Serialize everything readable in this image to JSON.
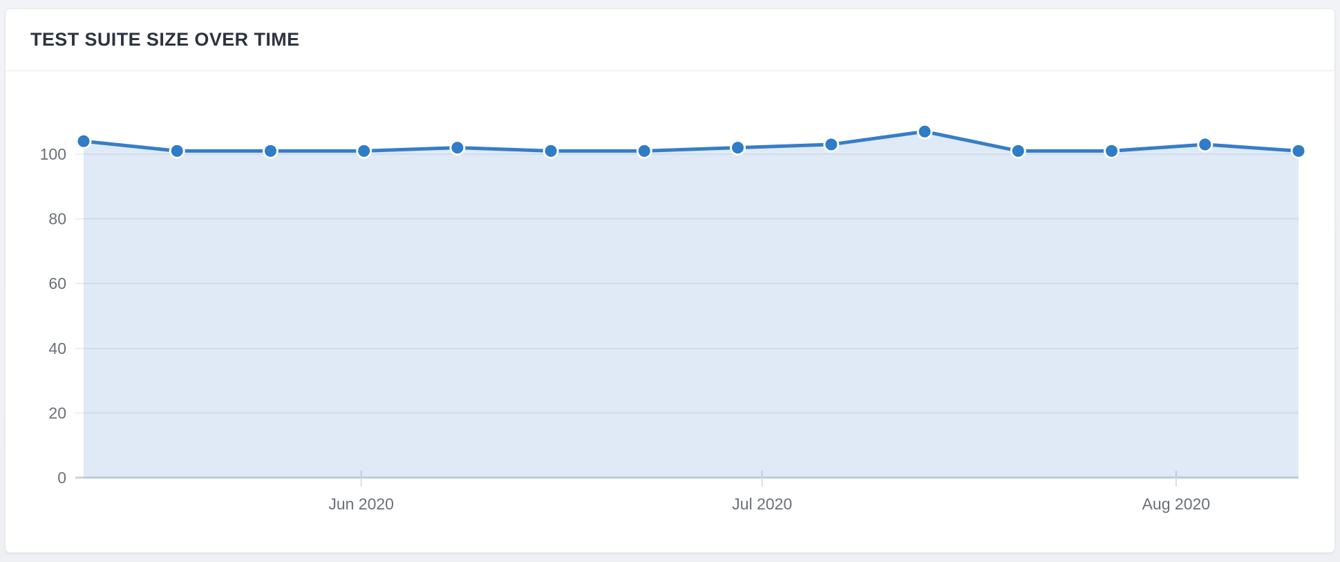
{
  "page": {
    "background_color": "#f1f2f6"
  },
  "card": {
    "title": "TEST SUITE SIZE OVER TIME"
  },
  "chart_data": {
    "type": "area",
    "title": "TEST SUITE SIZE OVER TIME",
    "values": [
      104,
      101,
      101,
      101,
      102,
      101,
      101,
      102,
      103,
      107,
      101,
      101,
      103,
      101
    ],
    "point_count": 14,
    "x_tick_labels": [
      "Jun 2020",
      "Jul 2020",
      "Aug 2020"
    ],
    "x_tick_positions": [
      2.97,
      7.26,
      11.69
    ],
    "y_ticks": [
      0,
      20,
      40,
      60,
      80,
      100
    ],
    "y_tick_labels": [
      "0",
      "20",
      "40",
      "60",
      "80",
      "100"
    ],
    "ylim": [
      0,
      125
    ],
    "grid": "horizontal",
    "legend": "none",
    "colors": {
      "line": "#377DC8",
      "point_fill": "#2F7CC7",
      "point_border": "#FFFFFF",
      "area_fill": "#377DC8",
      "area_opacity": 0.16,
      "gridline": "#E8EAEE",
      "zero_axis_line": "#C9D1DB",
      "x_tick_mark": "#D9DCE1",
      "axis_text": "#6A6F78",
      "title_text": "#2D3440"
    }
  }
}
